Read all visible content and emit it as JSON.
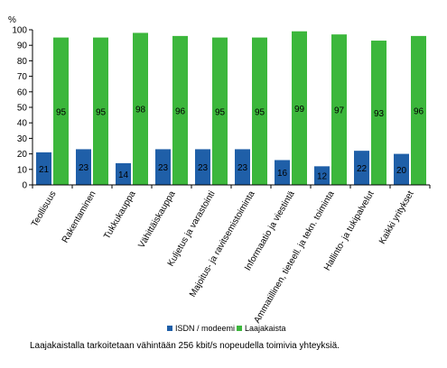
{
  "chart_data": {
    "type": "bar",
    "y_unit": "%",
    "ylim": [
      0,
      100
    ],
    "yticks": [
      0,
      10,
      20,
      30,
      40,
      50,
      60,
      70,
      80,
      90,
      100
    ],
    "grid": false,
    "legend_position": "bottom",
    "categories": [
      "Teollisuus",
      "Rakentaminen",
      "Tukkukauppa",
      "Vähittäiskauppa",
      "Kuljetus ja varastointi",
      "Majoitus- ja ravitsemistoiminta",
      "Informaatio ja viestintä",
      "Ammatillinen, tieteell. ja tekn. toiminta",
      "Hallinto- ja tukipalvelut",
      "Kaikki yritykset"
    ],
    "series": [
      {
        "name": "ISDN / modeemi",
        "color": "#1f5fa8",
        "values": [
          21,
          23,
          14,
          23,
          23,
          23,
          16,
          12,
          22,
          20
        ]
      },
      {
        "name": "Laajakaista",
        "color": "#3cb73c",
        "values": [
          95,
          95,
          98,
          96,
          95,
          95,
          99,
          97,
          93,
          96
        ]
      }
    ]
  },
  "footnote": "Laajakaistalla tarkoitetaan vähintään 256 kbit/s nopeudella toimivia yhteyksiä."
}
